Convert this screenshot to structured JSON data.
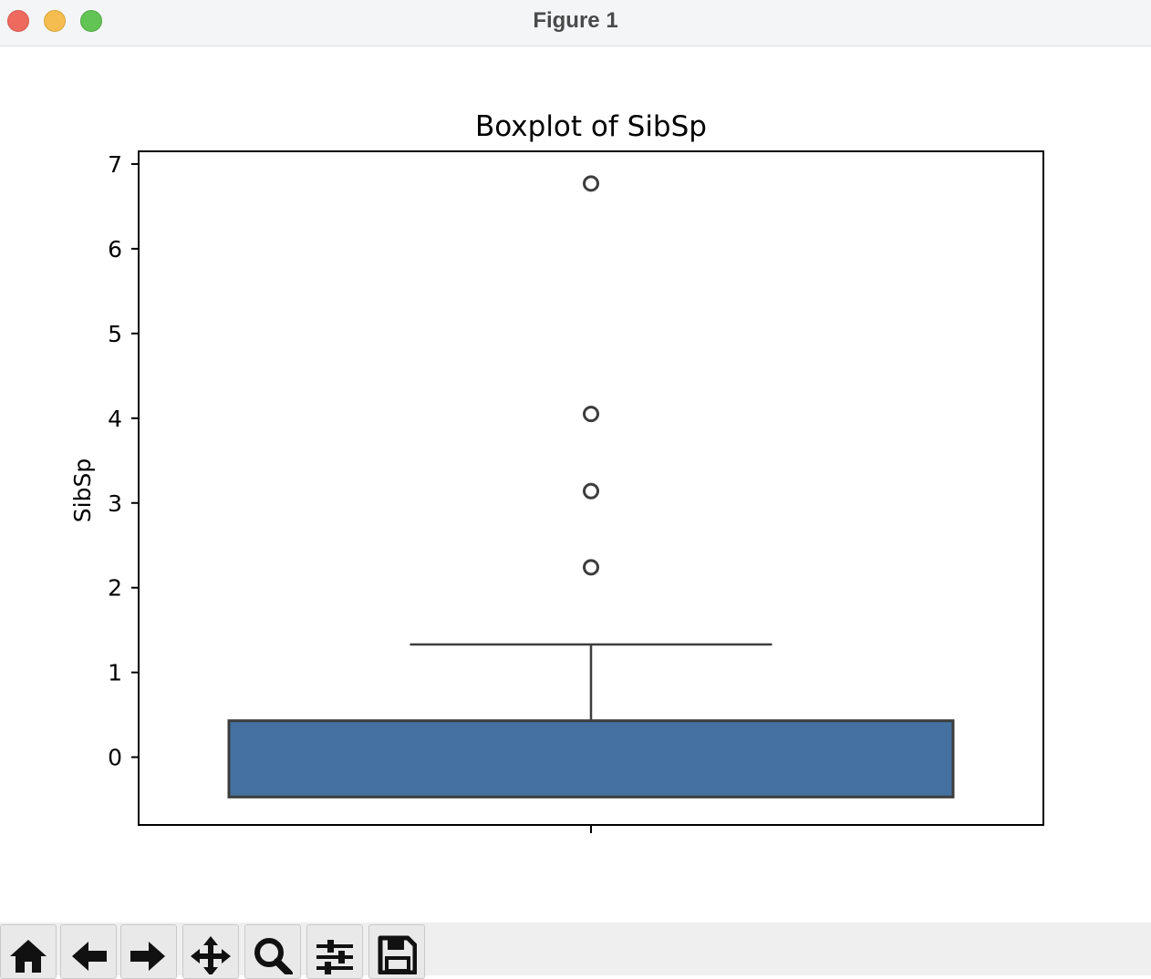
{
  "window": {
    "title": "Figure 1"
  },
  "toolbar": {
    "tools": [
      {
        "name": "home-icon"
      },
      {
        "name": "back-arrow-icon"
      },
      {
        "name": "forward-arrow-icon"
      },
      {
        "name": "pan-icon"
      },
      {
        "name": "zoom-icon"
      },
      {
        "name": "configure-subplots-icon"
      },
      {
        "name": "save-icon"
      }
    ]
  },
  "chart_data": {
    "type": "box",
    "title": "Boxplot of SibSp",
    "xlabel": "",
    "ylabel": "SibSp",
    "ylim": [
      -0.8,
      7.15
    ],
    "yticks": [
      0,
      1,
      2,
      3,
      4,
      5,
      6,
      7
    ],
    "box": {
      "q1": -0.47,
      "q3": 0.43,
      "whisker_low": -0.47,
      "whisker_high": 1.33
    },
    "outliers": [
      2.24,
      3.14,
      4.05,
      6.77
    ],
    "box_color": "#4471a0",
    "edge_color": "#3d3d3d",
    "grid": false
  }
}
